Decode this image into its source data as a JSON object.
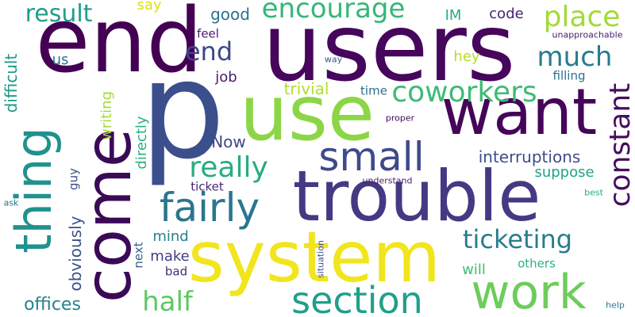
{
  "words": [
    {
      "id": "p",
      "text": "p",
      "color": "#3b4f8c",
      "orientation": "horizontal"
    },
    {
      "id": "users",
      "text": "users",
      "color": "#46065b",
      "orientation": "horizontal"
    },
    {
      "id": "end_large",
      "text": "end",
      "color": "#440154",
      "orientation": "horizontal"
    },
    {
      "id": "want",
      "text": "want",
      "color": "#450559",
      "orientation": "horizontal"
    },
    {
      "id": "use",
      "text": "use",
      "color": "#8bd646",
      "orientation": "horizontal"
    },
    {
      "id": "trouble",
      "text": "trouble",
      "color": "#443a83",
      "orientation": "horizontal"
    },
    {
      "id": "system",
      "text": "system",
      "color": "#f1e51d",
      "orientation": "horizontal"
    },
    {
      "id": "come",
      "text": "come",
      "color": "#3a0a57",
      "orientation": "vertical"
    },
    {
      "id": "thing",
      "text": "thing",
      "color": "#21918c",
      "orientation": "vertical"
    },
    {
      "id": "work",
      "text": "work",
      "color": "#6ccd5a",
      "orientation": "horizontal"
    },
    {
      "id": "section",
      "text": "section",
      "color": "#1fa088",
      "orientation": "horizontal"
    },
    {
      "id": "small",
      "text": "small",
      "color": "#3e4a89",
      "orientation": "horizontal"
    },
    {
      "id": "fairly",
      "text": "fairly",
      "color": "#2a768e",
      "orientation": "horizontal"
    },
    {
      "id": "constant",
      "text": "constant",
      "color": "#470d60",
      "orientation": "vertical"
    },
    {
      "id": "really",
      "text": "really",
      "color": "#27ad81",
      "orientation": "horizontal"
    },
    {
      "id": "encourage",
      "text": "encourage",
      "color": "#35b779",
      "orientation": "horizontal"
    },
    {
      "id": "place",
      "text": "place",
      "color": "#a2da37",
      "orientation": "horizontal"
    },
    {
      "id": "coworkers",
      "text": "coworkers",
      "color": "#3dbc74",
      "orientation": "horizontal"
    },
    {
      "id": "result",
      "text": "result",
      "color": "#1f9e89",
      "orientation": "horizontal"
    },
    {
      "id": "ticketing",
      "text": "ticketing",
      "color": "#287d8e",
      "orientation": "horizontal"
    },
    {
      "id": "half",
      "text": "half",
      "color": "#5ec962",
      "orientation": "horizontal"
    },
    {
      "id": "much",
      "text": "much",
      "color": "#297b8e",
      "orientation": "horizontal"
    },
    {
      "id": "end_small",
      "text": "end",
      "color": "#3f4788",
      "orientation": "horizontal"
    },
    {
      "id": "interruptions",
      "text": "interruptions",
      "color": "#3e4c8a",
      "orientation": "horizontal"
    },
    {
      "id": "offices",
      "text": "offices",
      "color": "#26828e",
      "orientation": "horizontal"
    },
    {
      "id": "difficult",
      "text": "difficult",
      "color": "#1e9b8a",
      "orientation": "vertical"
    },
    {
      "id": "obviously",
      "text": "obviously",
      "color": "#3b528b",
      "orientation": "vertical"
    },
    {
      "id": "directly",
      "text": "directly",
      "color": "#2ab07f",
      "orientation": "vertical"
    },
    {
      "id": "writing",
      "text": "writing",
      "color": "#a5db36",
      "orientation": "vertical"
    },
    {
      "id": "suppose",
      "text": "suppose",
      "color": "#20a386",
      "orientation": "horizontal"
    },
    {
      "id": "trivial",
      "text": "trivial",
      "color": "#b0dd2f",
      "orientation": "horizontal"
    },
    {
      "id": "now",
      "text": "Now",
      "color": "#3e4989",
      "orientation": "horizontal"
    },
    {
      "id": "good",
      "text": "good",
      "color": "#2d718e",
      "orientation": "horizontal"
    },
    {
      "id": "code",
      "text": "code",
      "color": "#482173",
      "orientation": "horizontal"
    },
    {
      "id": "im",
      "text": "IM",
      "color": "#25ab82",
      "orientation": "horizontal"
    },
    {
      "id": "say",
      "text": "say",
      "color": "#d8e219",
      "orientation": "horizontal"
    },
    {
      "id": "job",
      "text": "job",
      "color": "#481c6e",
      "orientation": "horizontal"
    },
    {
      "id": "feel",
      "text": "feel",
      "color": "#48186a",
      "orientation": "horizontal"
    },
    {
      "id": "us",
      "text": "us",
      "color": "#2c728e",
      "orientation": "horizontal"
    },
    {
      "id": "hey",
      "text": "hey",
      "color": "#b5de2b",
      "orientation": "horizontal"
    },
    {
      "id": "filling",
      "text": "filling",
      "color": "#2e6e8e",
      "orientation": "horizontal"
    },
    {
      "id": "unapproachable",
      "text": "unapproachable",
      "color": "#481d6f",
      "orientation": "horizontal"
    },
    {
      "id": "time",
      "text": "time",
      "color": "#2f6c8e",
      "orientation": "horizontal"
    },
    {
      "id": "proper",
      "text": "proper",
      "color": "#460a5d",
      "orientation": "horizontal"
    },
    {
      "id": "way",
      "text": "way",
      "color": "#3a548c",
      "orientation": "horizontal"
    },
    {
      "id": "guy",
      "text": "guy",
      "color": "#3c508b",
      "orientation": "vertical"
    },
    {
      "id": "ticket",
      "text": "ticket",
      "color": "#482677",
      "orientation": "horizontal"
    },
    {
      "id": "understand",
      "text": "understand",
      "color": "#481a6c",
      "orientation": "horizontal"
    },
    {
      "id": "mind",
      "text": "mind",
      "color": "#27808e",
      "orientation": "horizontal"
    },
    {
      "id": "make",
      "text": "make",
      "color": "#433d84",
      "orientation": "horizontal"
    },
    {
      "id": "next",
      "text": "next",
      "color": "#355f8d",
      "orientation": "vertical"
    },
    {
      "id": "will",
      "text": "will",
      "color": "#3fbc73",
      "orientation": "horizontal"
    },
    {
      "id": "others",
      "text": "others",
      "color": "#2db27d",
      "orientation": "horizontal"
    },
    {
      "id": "bad",
      "text": "bad",
      "color": "#472c7a",
      "orientation": "horizontal"
    },
    {
      "id": "situation",
      "text": "situation",
      "color": "#3d4d8a",
      "orientation": "vertical"
    },
    {
      "id": "best",
      "text": "best",
      "color": "#26ad81",
      "orientation": "horizontal"
    },
    {
      "id": "ask",
      "text": "ask",
      "color": "#2c718e",
      "orientation": "horizontal"
    },
    {
      "id": "help",
      "text": "help",
      "color": "#297a8e",
      "orientation": "horizontal"
    }
  ]
}
